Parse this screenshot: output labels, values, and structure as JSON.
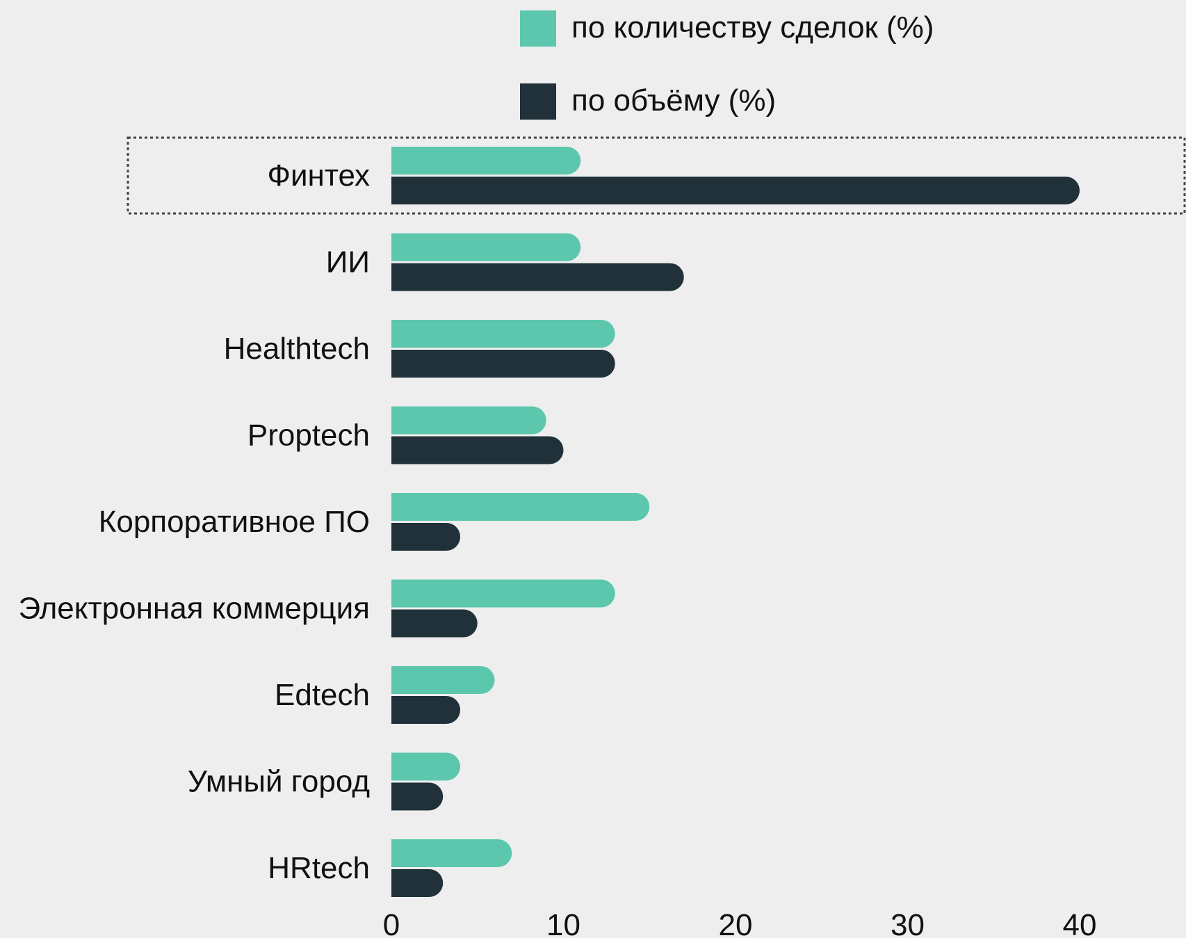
{
  "chart_data": {
    "type": "bar",
    "orientation": "horizontal",
    "categories": [
      "Финтех",
      "ИИ",
      "Healthtech",
      "Proptech",
      "Корпоративное ПО",
      "Электронная коммерция",
      "Edtech",
      "Умный город",
      "HRtech"
    ],
    "series": [
      {
        "name": "по количеству сделок (%)",
        "color": "#5cc7ad",
        "values": [
          11,
          11,
          13,
          9,
          15,
          13,
          6,
          4,
          7
        ]
      },
      {
        "name": "по объёму (%)",
        "color": "#20313a",
        "values": [
          40,
          17,
          13,
          10,
          4,
          5,
          4,
          3,
          3
        ]
      }
    ],
    "x_ticks": [
      "0",
      "10",
      "20",
      "30",
      "40"
    ],
    "xlim": [
      0,
      45
    ],
    "grid": false,
    "legend_position": "top",
    "highlighted_category": "Финтех"
  }
}
